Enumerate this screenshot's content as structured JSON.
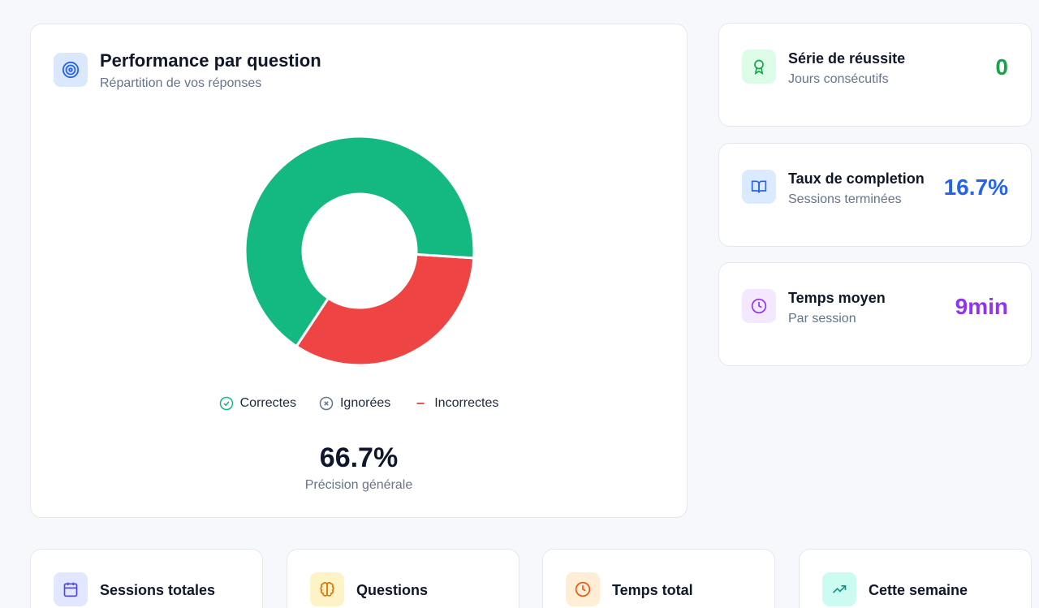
{
  "performance": {
    "title": "Performance par question",
    "subtitle": "Répartition de vos réponses",
    "legend": {
      "correct": "Correctes",
      "skipped": "Ignorées",
      "incorrect": "Incorrectes"
    },
    "accuracy_value": "66.7%",
    "accuracy_label": "Précision générale"
  },
  "chart_data": {
    "type": "pie",
    "categories": [
      "Correctes",
      "Ignorées",
      "Incorrectes"
    ],
    "values": [
      66.7,
      0,
      33.3
    ],
    "colors": [
      "#14b981",
      "#94a3b8",
      "#ef4444"
    ]
  },
  "stats": {
    "streak": {
      "title": "Série de réussite",
      "subtitle": "Jours consécutifs",
      "value": "0",
      "color": "#16a34a",
      "icon": "award-icon"
    },
    "completion": {
      "title": "Taux de completion",
      "subtitle": "Sessions terminées",
      "value": "16.7%",
      "color": "#2563eb",
      "icon": "book-open-icon"
    },
    "avg_time": {
      "title": "Temps moyen",
      "subtitle": "Par session",
      "value": "9min",
      "color": "#9333ea",
      "icon": "clock-icon"
    }
  },
  "bottom": {
    "sessions": {
      "title": "Sessions totales",
      "icon": "calendar-icon"
    },
    "questions": {
      "title": "Questions",
      "icon": "brain-icon"
    },
    "total_time": {
      "title": "Temps total",
      "icon": "clock-icon"
    },
    "week": {
      "title": "Cette semaine",
      "icon": "trending-up-icon"
    }
  }
}
